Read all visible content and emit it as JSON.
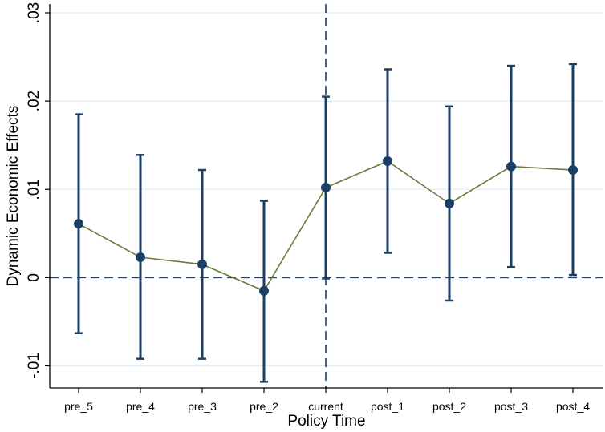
{
  "chart_data": {
    "type": "line",
    "title": "",
    "xlabel": "Policy Time",
    "ylabel": "Dynamic Economic Effects",
    "categories": [
      "pre_5",
      "pre_4",
      "pre_3",
      "pre_2",
      "current",
      "post_1",
      "post_2",
      "post_3",
      "post_4"
    ],
    "series": [
      {
        "values": [
          0.0061,
          0.0023,
          0.0015,
          -0.0015,
          0.0102,
          0.0132,
          0.0084,
          0.0126,
          0.0122
        ],
        "ci_lower": [
          -0.0063,
          -0.0092,
          -0.0092,
          -0.0118,
          -0.0001,
          0.0028,
          -0.0026,
          0.0012,
          0.0003
        ],
        "ci_upper": [
          0.0185,
          0.0139,
          0.0122,
          0.0087,
          0.0205,
          0.0236,
          0.0194,
          0.024,
          0.0242
        ]
      }
    ],
    "ylim": [
      -0.0125,
      0.031
    ],
    "yticks": [
      -0.01,
      0,
      0.01,
      0.02,
      0.03
    ],
    "ytick_labels": [
      "-.01",
      "0",
      ".01",
      ".02",
      ".03"
    ],
    "reference_lines": {
      "horizontal_at": 0,
      "vertical_at_category": "current",
      "style": "dashed"
    },
    "grid": true,
    "legend": "none",
    "colors": {
      "line": "#6b7a3a",
      "marker": "#1c3f66",
      "errorbar": "#1c3f66",
      "reference": "#1c3f66",
      "grid": "#e4ecf2",
      "axis": "#000000"
    }
  }
}
